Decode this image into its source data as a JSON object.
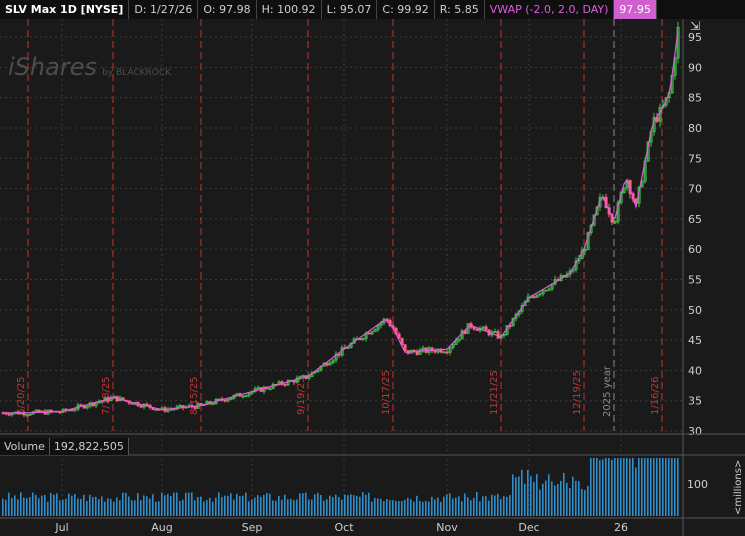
{
  "header": {
    "symbol": "SLV Max 1D [NYSE]",
    "date": "D: 1/27/26",
    "open": "O: 97.98",
    "high": "H: 100.92",
    "low": "L: 95.07",
    "close": "C: 99.92",
    "range": "R: 5.85",
    "vwap_label": "VWAP (-2.0, 2.0, DAY)",
    "vwap_value": "97.95"
  },
  "watermark": {
    "brand": "iShares",
    "sub": "by BLACKROCK"
  },
  "volume": {
    "label": "Volume",
    "value": "192,822,505",
    "axis_tick": "100",
    "axis_unit": "<millions>"
  },
  "price_axis": [
    "95",
    "90",
    "85",
    "80",
    "75",
    "70",
    "65",
    "60",
    "55",
    "50",
    "45",
    "40",
    "35",
    "30"
  ],
  "month_axis": [
    "Jul",
    "Aug",
    "Sep",
    "Oct",
    "Nov",
    "Dec",
    "26"
  ],
  "event_markers": [
    "6/20/25",
    "7/18/25",
    "8/15/25",
    "9/19/25",
    "10/17/25",
    "11/21/25",
    "12/19/25",
    "2025 year",
    "1/16/26"
  ],
  "colors": {
    "up": "#3ec24a",
    "down": "#ff5f87",
    "vwap": "#e05de0",
    "marker": "#c83232",
    "grid": "#3a3a3a"
  },
  "chart_data": {
    "type": "candlestick",
    "y_axis_ticks": [
      30,
      35,
      40,
      45,
      50,
      55,
      60,
      65,
      70,
      75,
      80,
      85,
      90,
      95
    ],
    "series": [
      {
        "name": "price",
        "points": [
          [
            "6/20/25",
            33.0
          ],
          [
            "7/1/25",
            33.2
          ],
          [
            "7/18/25",
            35.5
          ],
          [
            "8/1/25",
            33.5
          ],
          [
            "8/15/25",
            34.2
          ],
          [
            "9/1/25",
            36.5
          ],
          [
            "9/19/25",
            39.0
          ],
          [
            "10/1/25",
            43.5
          ],
          [
            "10/15/25",
            48.5
          ],
          [
            "10/17/25",
            47.0
          ],
          [
            "10/22/25",
            43.0
          ],
          [
            "11/1/25",
            43.5
          ],
          [
            "11/13/25",
            47.5
          ],
          [
            "11/21/25",
            45.5
          ],
          [
            "12/1/25",
            52.0
          ],
          [
            "12/12/25",
            56.0
          ],
          [
            "12/19/25",
            60.0
          ],
          [
            "12/26/25",
            69.0
          ],
          [
            "12/31/25",
            64.5
          ],
          [
            "1/6/26",
            72.0
          ],
          [
            "1/10/26",
            67.0
          ],
          [
            "1/14/26",
            81.0
          ],
          [
            "1/16/26",
            83.0
          ],
          [
            "1/22/26",
            86.0
          ],
          [
            "1/27/26",
            99.92
          ]
        ]
      }
    ]
  }
}
